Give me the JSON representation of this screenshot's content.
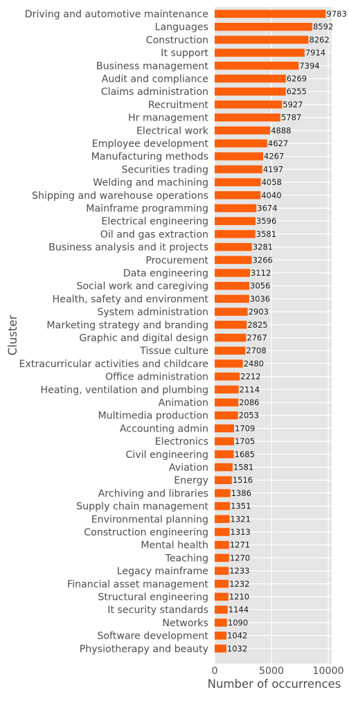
{
  "chart_data": {
    "type": "bar",
    "orientation": "horizontal",
    "title": "",
    "xlabel": "Number of occurrences",
    "ylabel": "Cluster",
    "xlim": [
      0,
      10300
    ],
    "xticks": [
      0,
      5000,
      10000
    ],
    "grid": true,
    "legend": "none",
    "bar_color": "#ff5f0a",
    "background_color": "#e5e5e5",
    "categories": [
      "Driving and automotive maintenance",
      "Languages",
      "Construction",
      "It support",
      "Business management",
      "Audit and compliance",
      "Claims administration",
      "Recruitment",
      "Hr management",
      "Electrical work",
      "Employee development",
      "Manufacturing methods",
      "Securities trading",
      "Welding and machining",
      "Shipping and warehouse operations",
      "Mainframe programming",
      "Electrical engineering",
      "Oil and gas extraction",
      "Business analysis and it projects",
      "Procurement",
      "Data engineering",
      "Social work and caregiving",
      "Health, safety and environment",
      "System administration",
      "Marketing strategy and branding",
      "Graphic and digital design",
      "Tissue culture",
      "Extracurricular activities and childcare",
      "Office administration",
      "Heating, ventilation and plumbing",
      "Animation",
      "Multimedia production",
      "Accounting admin",
      "Electronics",
      "Civil engineering",
      "Aviation",
      "Energy",
      "Archiving and libraries",
      "Supply chain management",
      "Environmental planning",
      "Construction engineering",
      "Mental health",
      "Teaching",
      "Legacy mainframe",
      "Financial asset management",
      "Structural engineering",
      "It security standards",
      "Networks",
      "Software development",
      "Physiotherapy and beauty"
    ],
    "values": [
      9783,
      8592,
      8262,
      7914,
      7394,
      6269,
      6255,
      5927,
      5787,
      4888,
      4627,
      4267,
      4197,
      4058,
      4040,
      3674,
      3596,
      3581,
      3281,
      3266,
      3112,
      3056,
      3036,
      2903,
      2825,
      2767,
      2708,
      2480,
      2212,
      2114,
      2086,
      2053,
      1709,
      1705,
      1685,
      1581,
      1516,
      1386,
      1351,
      1321,
      1313,
      1271,
      1270,
      1233,
      1232,
      1210,
      1144,
      1090,
      1042,
      1032
    ]
  }
}
